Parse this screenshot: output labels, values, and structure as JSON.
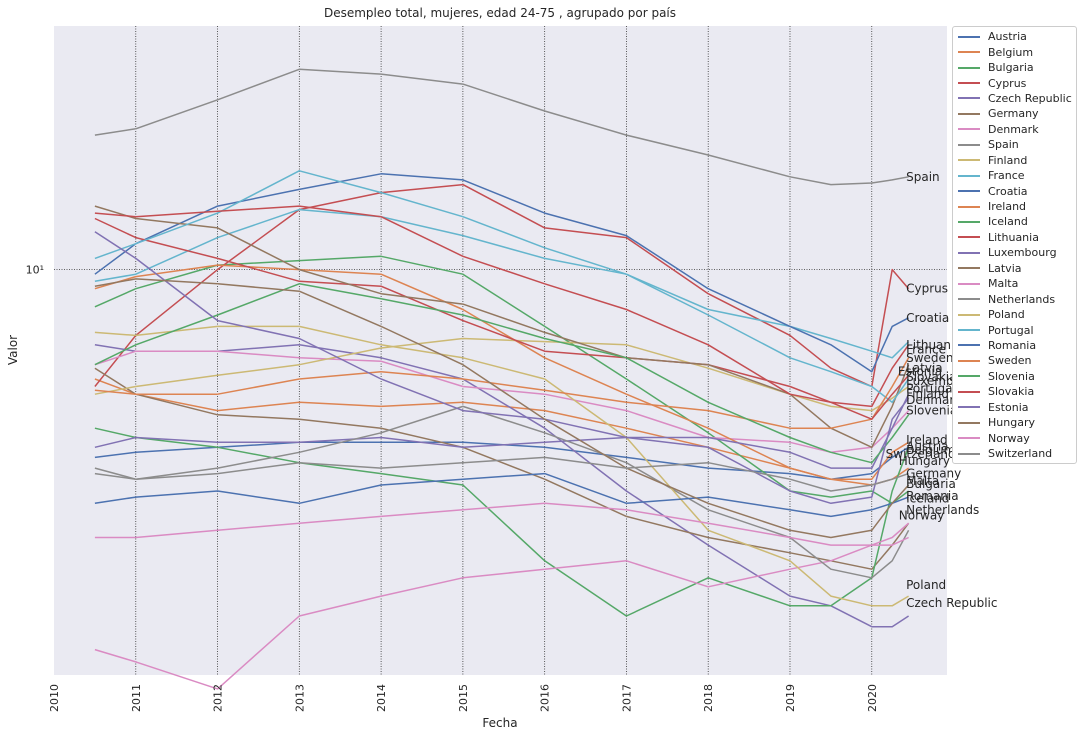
{
  "chart_data": {
    "type": "line",
    "title": "Desempleo total, mujeres, edad 24-75 , agrupado por país",
    "xlabel": "Fecha",
    "ylabel": "Valor",
    "yscale": "log",
    "ytick_label": "10¹",
    "xticks": [
      "2010",
      "2011",
      "2012",
      "2013",
      "2014",
      "2015",
      "2016",
      "2017",
      "2018",
      "2019",
      "2020"
    ],
    "xlim": [
      2010.0,
      2020.92
    ],
    "ylim": [
      1.7,
      29.0
    ],
    "grid": true,
    "legend_position": "upper right, outside",
    "colors": [
      "#4c72b0",
      "#dd8452",
      "#55a868",
      "#c44e52",
      "#8172b3",
      "#937860",
      "#da8bc3",
      "#8c8c8c",
      "#ccb974",
      "#64b5cd"
    ],
    "series": [
      {
        "name": "Austria",
        "x": [
          2010.5,
          2011,
          2012,
          2013,
          2014,
          2015,
          2016,
          2017,
          2018,
          2019,
          2019.5,
          2020,
          2020.25,
          2020.45
        ],
        "y": [
          4.4,
          4.5,
          4.6,
          4.7,
          4.7,
          4.7,
          4.6,
          4.4,
          4.2,
          4.1,
          4.0,
          4.1,
          4.4,
          4.6
        ]
      },
      {
        "name": "Belgium",
        "x": [
          2010.5,
          2011,
          2012,
          2013,
          2014,
          2015,
          2016,
          2017,
          2018,
          2019,
          2019.5,
          2020,
          2020.25,
          2020.45
        ],
        "y": [
          6.2,
          5.8,
          5.4,
          5.6,
          5.5,
          5.6,
          5.4,
          5.0,
          4.6,
          4.2,
          4.0,
          3.9,
          4.0,
          4.2
        ]
      },
      {
        "name": "Bulgaria",
        "x": [
          2010.5,
          2011,
          2012,
          2013,
          2014,
          2015,
          2016,
          2017,
          2018,
          2019,
          2019.5,
          2020,
          2020.25,
          2020.45
        ],
        "y": [
          8.5,
          9.2,
          10.2,
          10.4,
          10.6,
          9.8,
          7.8,
          6.2,
          4.9,
          3.8,
          3.7,
          3.8,
          3.6,
          3.8
        ]
      },
      {
        "name": "Cyprus",
        "x": [
          2010.5,
          2011,
          2012,
          2013,
          2014,
          2015,
          2016,
          2017,
          2018,
          2019,
          2019.5,
          2020,
          2020.25,
          2020.45
        ],
        "y": [
          6.0,
          7.5,
          10.0,
          13.0,
          14.0,
          14.5,
          12.0,
          11.5,
          9.0,
          7.5,
          6.5,
          6.0,
          10.0,
          9.2
        ]
      },
      {
        "name": "Czech Republic",
        "x": [
          2010.5,
          2011,
          2012,
          2013,
          2014,
          2015,
          2016,
          2017,
          2018,
          2019,
          2019.5,
          2020,
          2020.25,
          2020.45
        ],
        "y": [
          7.2,
          7.0,
          7.0,
          7.2,
          6.8,
          6.2,
          5.0,
          3.8,
          3.0,
          2.4,
          2.3,
          2.1,
          2.1,
          2.2
        ]
      },
      {
        "name": "Germany",
        "x": [
          2010.5,
          2011,
          2012,
          2013,
          2014,
          2015,
          2016,
          2017,
          2018,
          2019,
          2019.5,
          2020,
          2020.25,
          2020.45
        ],
        "y": [
          6.5,
          5.8,
          5.3,
          5.2,
          5.0,
          4.6,
          4.0,
          3.4,
          3.1,
          2.9,
          2.8,
          2.7,
          3.0,
          3.3
        ]
      },
      {
        "name": "Denmark",
        "x": [
          2010.5,
          2011,
          2012,
          2013,
          2014,
          2015,
          2016,
          2017,
          2018,
          2019,
          2019.5,
          2020,
          2020.25,
          2020.45
        ],
        "y": [
          6.6,
          7.0,
          7.0,
          6.8,
          6.7,
          6.0,
          5.8,
          5.4,
          4.8,
          4.7,
          4.5,
          4.6,
          5.0,
          5.4
        ]
      },
      {
        "name": "Spain",
        "x": [
          2010.5,
          2011,
          2012,
          2013,
          2014,
          2015,
          2016,
          2017,
          2018,
          2019,
          2019.5,
          2020,
          2020.25,
          2020.45
        ],
        "y": [
          18.0,
          18.5,
          21.0,
          24.0,
          23.5,
          22.5,
          20.0,
          18.0,
          16.5,
          15.0,
          14.5,
          14.6,
          14.8,
          15.0
        ]
      },
      {
        "name": "Finland",
        "x": [
          2010.5,
          2011,
          2012,
          2013,
          2014,
          2015,
          2016,
          2017,
          2018,
          2019,
          2019.5,
          2020,
          2020.25,
          2020.45
        ],
        "y": [
          5.8,
          6.0,
          6.3,
          6.6,
          7.1,
          7.4,
          7.3,
          7.2,
          6.5,
          5.8,
          5.5,
          5.4,
          5.7,
          6.0
        ]
      },
      {
        "name": "France",
        "x": [
          2010.5,
          2011,
          2012,
          2013,
          2014,
          2015,
          2016,
          2017,
          2018,
          2019,
          2019.5,
          2020,
          2020.25,
          2020.45
        ],
        "y": [
          9.5,
          9.8,
          11.5,
          13.0,
          12.6,
          11.6,
          10.5,
          9.8,
          8.4,
          7.8,
          7.4,
          7.0,
          6.8,
          7.3
        ]
      },
      {
        "name": "Croatia",
        "x": [
          2010.5,
          2011,
          2012,
          2013,
          2014,
          2015,
          2016,
          2017,
          2018,
          2019,
          2019.5,
          2020,
          2020.25,
          2020.45
        ],
        "y": [
          9.8,
          11.2,
          13.2,
          14.2,
          15.2,
          14.8,
          12.8,
          11.6,
          9.2,
          7.8,
          7.2,
          6.4,
          7.8,
          8.1
        ]
      },
      {
        "name": "Ireland",
        "x": [
          2010.5,
          2011,
          2012,
          2013,
          2014,
          2015,
          2016,
          2017,
          2018,
          2019,
          2019.5,
          2020,
          2020.25,
          2020.45
        ],
        "y": [
          9.2,
          9.7,
          10.2,
          10.0,
          9.8,
          8.4,
          6.8,
          5.8,
          5.0,
          4.2,
          4.0,
          4.0,
          4.5,
          4.7
        ]
      },
      {
        "name": "Iceland",
        "x": [
          2010.5,
          2011,
          2012,
          2013,
          2014,
          2015,
          2016,
          2017,
          2018,
          2019,
          2019.5,
          2020,
          2020.25,
          2020.45
        ],
        "y": [
          5.0,
          4.8,
          4.6,
          4.3,
          4.1,
          3.9,
          2.8,
          2.2,
          2.6,
          2.3,
          2.3,
          2.6,
          3.8,
          4.6
        ]
      },
      {
        "name": "Lithuania",
        "x": [
          2010.5,
          2011,
          2012,
          2013,
          2014,
          2015,
          2016,
          2017,
          2018,
          2019,
          2019.5,
          2020,
          2020.25,
          2020.45
        ],
        "y": [
          12.5,
          11.5,
          10.5,
          9.5,
          9.3,
          8.0,
          7.0,
          6.8,
          6.6,
          6.0,
          5.6,
          5.5,
          6.5,
          7.2
        ]
      },
      {
        "name": "Luxembourg",
        "x": [
          2010.5,
          2011,
          2012,
          2013,
          2014,
          2015,
          2016,
          2017,
          2018,
          2019,
          2019.5,
          2020,
          2020.25,
          2020.45
        ],
        "y": [
          4.6,
          4.8,
          4.7,
          4.7,
          4.8,
          4.6,
          4.7,
          4.8,
          4.8,
          4.5,
          4.2,
          4.2,
          5.0,
          5.8
        ]
      },
      {
        "name": "Latvia",
        "x": [
          2010.5,
          2011,
          2012,
          2013,
          2014,
          2015,
          2016,
          2017,
          2018,
          2019,
          2019.5,
          2020,
          2020.25,
          2020.45
        ],
        "y": [
          13.2,
          12.5,
          12.0,
          10.0,
          9.0,
          8.6,
          7.6,
          6.8,
          6.6,
          5.8,
          5.0,
          4.6,
          5.5,
          6.6
        ]
      },
      {
        "name": "Malta",
        "x": [
          2010.5,
          2011,
          2012,
          2013,
          2014,
          2015,
          2016,
          2017,
          2018,
          2019,
          2019.5,
          2020,
          2020.25,
          2020.45
        ],
        "y": [
          1.9,
          1.8,
          1.6,
          2.2,
          2.4,
          2.6,
          2.7,
          2.8,
          2.5,
          2.7,
          2.8,
          3.0,
          3.1,
          3.3
        ]
      },
      {
        "name": "Netherlands",
        "x": [
          2010.5,
          2011,
          2012,
          2013,
          2014,
          2015,
          2016,
          2017,
          2018,
          2019,
          2019.5,
          2020,
          2020.25,
          2020.45
        ],
        "y": [
          4.1,
          4.0,
          4.2,
          4.5,
          4.9,
          5.5,
          4.9,
          4.3,
          3.5,
          3.1,
          2.7,
          2.6,
          2.8,
          3.2
        ]
      },
      {
        "name": "Poland",
        "x": [
          2010.5,
          2011,
          2012,
          2013,
          2014,
          2015,
          2016,
          2017,
          2018,
          2019,
          2019.5,
          2020,
          2020.25,
          2020.45
        ],
        "y": [
          7.6,
          7.5,
          7.8,
          7.8,
          7.2,
          6.8,
          6.2,
          4.8,
          3.2,
          2.8,
          2.4,
          2.3,
          2.3,
          2.4
        ]
      },
      {
        "name": "Portugal",
        "x": [
          2010.5,
          2011,
          2012,
          2013,
          2014,
          2015,
          2016,
          2017,
          2018,
          2019,
          2019.5,
          2020,
          2020.25,
          2020.45
        ],
        "y": [
          10.5,
          11.2,
          12.8,
          15.4,
          14.0,
          12.6,
          11.0,
          9.8,
          8.2,
          6.8,
          6.4,
          6.0,
          5.6,
          6.2
        ]
      },
      {
        "name": "Romania",
        "x": [
          2010.5,
          2011,
          2012,
          2013,
          2014,
          2015,
          2016,
          2017,
          2018,
          2019,
          2019.5,
          2020,
          2020.25,
          2020.45
        ],
        "y": [
          3.6,
          3.7,
          3.8,
          3.6,
          3.9,
          4.0,
          4.1,
          3.6,
          3.7,
          3.5,
          3.4,
          3.5,
          3.6,
          3.7
        ]
      },
      {
        "name": "Sweden",
        "x": [
          2010.5,
          2011,
          2012,
          2013,
          2014,
          2015,
          2016,
          2017,
          2018,
          2019,
          2019.5,
          2020,
          2020.25,
          2020.45
        ],
        "y": [
          5.9,
          5.8,
          5.8,
          6.2,
          6.4,
          6.2,
          5.9,
          5.6,
          5.4,
          5.0,
          5.0,
          5.2,
          6.0,
          6.8
        ]
      },
      {
        "name": "Slovenia",
        "x": [
          2010.5,
          2011,
          2012,
          2013,
          2014,
          2015,
          2016,
          2017,
          2018,
          2019,
          2019.5,
          2020,
          2020.25,
          2020.45
        ],
        "y": [
          6.6,
          7.2,
          8.2,
          9.4,
          8.8,
          8.2,
          7.4,
          6.8,
          5.6,
          4.8,
          4.5,
          4.3,
          4.8,
          5.3
        ]
      },
      {
        "name": "Slovakia",
        "x": [
          2010.5,
          2011,
          2012,
          2013,
          2014,
          2015,
          2016,
          2017,
          2018,
          2019,
          2019.5,
          2020,
          2020.25,
          2020.45
        ],
        "y": [
          12.8,
          12.6,
          12.9,
          13.2,
          12.6,
          10.6,
          9.4,
          8.4,
          7.2,
          5.8,
          5.6,
          5.2,
          5.8,
          6.3
        ]
      },
      {
        "name": "Estonia",
        "x": [
          2010.5,
          2011,
          2012,
          2013,
          2014,
          2015,
          2016,
          2017,
          2018,
          2019,
          2019.5,
          2020,
          2020.25,
          2020.45
        ],
        "y": [
          11.8,
          10.5,
          8.0,
          7.4,
          6.2,
          5.4,
          5.2,
          4.8,
          4.6,
          3.8,
          3.6,
          3.7,
          5.2,
          5.7
        ]
      },
      {
        "name": "Hungary",
        "x": [
          2010.5,
          2011,
          2012,
          2013,
          2014,
          2015,
          2016,
          2017,
          2018,
          2019,
          2019.5,
          2020,
          2020.25,
          2020.45
        ],
        "y": [
          9.3,
          9.6,
          9.4,
          9.1,
          7.8,
          6.6,
          5.2,
          4.2,
          3.6,
          3.2,
          3.1,
          3.2,
          3.6,
          3.9
        ]
      },
      {
        "name": "Norway",
        "x": [
          2010.5,
          2011,
          2012,
          2013,
          2014,
          2015,
          2016,
          2017,
          2018,
          2019,
          2019.5,
          2020,
          2020.25,
          2020.45
        ],
        "y": [
          3.1,
          3.1,
          3.2,
          3.3,
          3.4,
          3.5,
          3.6,
          3.5,
          3.3,
          3.1,
          3.0,
          3.0,
          3.0,
          3.1
        ]
      },
      {
        "name": "Switzerland",
        "x": [
          2010.5,
          2011,
          2012,
          2013,
          2014,
          2015,
          2016,
          2017,
          2018,
          2019,
          2019.5,
          2020,
          2020.25,
          2020.45
        ],
        "y": [
          4.2,
          4.0,
          4.1,
          4.3,
          4.2,
          4.3,
          4.4,
          4.2,
          4.3,
          4.0,
          3.8,
          3.9,
          4.0,
          4.1
        ]
      }
    ],
    "end_labels": [
      {
        "text": "Spain",
        "x": 2020.42,
        "y": 15.0
      },
      {
        "text": "Cyprus",
        "x": 2020.42,
        "y": 9.2
      },
      {
        "text": "Croatia",
        "x": 2020.42,
        "y": 8.1
      },
      {
        "text": "Lithuania",
        "x": 2020.42,
        "y": 7.2
      },
      {
        "text": "France",
        "x": 2020.42,
        "y": 7.05
      },
      {
        "text": "Sweden",
        "x": 2020.42,
        "y": 6.8
      },
      {
        "text": "Latvia",
        "x": 2020.42,
        "y": 6.5
      },
      {
        "text": "Estonia",
        "x": 2020.32,
        "y": 6.4
      },
      {
        "text": "Slovakia",
        "x": 2020.42,
        "y": 6.25
      },
      {
        "text": "Luxembourg",
        "x": 2020.42,
        "y": 6.15
      },
      {
        "text": "Portugal",
        "x": 2020.42,
        "y": 5.95
      },
      {
        "text": "Finland",
        "x": 2020.42,
        "y": 5.8
      },
      {
        "text": "Denmark",
        "x": 2020.42,
        "y": 5.65
      },
      {
        "text": "Slovenia",
        "x": 2020.42,
        "y": 5.4
      },
      {
        "text": "Ireland",
        "x": 2020.42,
        "y": 4.75
      },
      {
        "text": "Austria",
        "x": 2020.42,
        "y": 4.62
      },
      {
        "text": "Belgium",
        "x": 2020.42,
        "y": 4.55
      },
      {
        "text": "Switzerland",
        "x": 2020.17,
        "y": 4.47
      },
      {
        "text": "Hungary",
        "x": 2020.33,
        "y": 4.33
      },
      {
        "text": "Germany",
        "x": 2020.42,
        "y": 4.1
      },
      {
        "text": "Malta",
        "x": 2020.42,
        "y": 3.97
      },
      {
        "text": "Bulgaria",
        "x": 2020.42,
        "y": 3.92
      },
      {
        "text": "Romania",
        "x": 2020.42,
        "y": 3.72
      },
      {
        "text": "Iceland",
        "x": 2020.42,
        "y": 3.68
      },
      {
        "text": "Netherlands",
        "x": 2020.42,
        "y": 3.5
      },
      {
        "text": "Norway",
        "x": 2020.33,
        "y": 3.41
      },
      {
        "text": "Poland",
        "x": 2020.42,
        "y": 2.52
      },
      {
        "text": "Czech Republic",
        "x": 2020.42,
        "y": 2.33
      }
    ]
  }
}
